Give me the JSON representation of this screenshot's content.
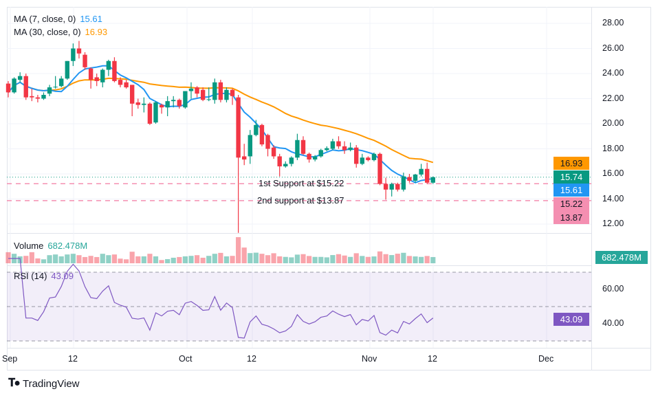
{
  "chart_data": {
    "type": "candlestick",
    "interval": "daily",
    "x_start": "Sep 1",
    "x_end": "Nov 12",
    "price_axis": {
      "ticks": [
        "28.00",
        "26.00",
        "24.00",
        "22.00",
        "20.00",
        "18.00",
        "16.00",
        "14.00",
        "12.00"
      ],
      "ylim": [
        12,
        28
      ]
    },
    "time_axis": {
      "ticks": [
        "Sep",
        "12",
        "Oct",
        "12",
        "Nov",
        "12",
        "Dec"
      ]
    },
    "ohlc": [
      [
        23.2,
        23.4,
        22.1,
        22.5
      ],
      [
        22.5,
        23.7,
        22.4,
        23.6
      ],
      [
        23.5,
        24.1,
        23.3,
        23.8
      ],
      [
        23.8,
        24.0,
        21.9,
        22.1
      ],
      [
        22.2,
        22.8,
        21.8,
        22.1
      ],
      [
        22.1,
        22.3,
        21.7,
        22.0
      ],
      [
        22.0,
        22.5,
        21.9,
        22.3
      ],
      [
        22.4,
        23.1,
        22.2,
        22.9
      ],
      [
        22.9,
        23.8,
        22.8,
        22.95
      ],
      [
        23.0,
        23.8,
        22.9,
        23.6
      ],
      [
        23.6,
        25.0,
        23.5,
        25.0
      ],
      [
        25.0,
        26.4,
        24.6,
        26.0
      ],
      [
        26.0,
        26.6,
        25.2,
        25.6
      ],
      [
        25.5,
        25.7,
        24.3,
        24.5
      ],
      [
        24.4,
        24.5,
        22.8,
        23.5
      ],
      [
        23.7,
        24.0,
        23.0,
        23.4
      ],
      [
        23.3,
        24.4,
        22.9,
        24.3
      ],
      [
        24.3,
        25.1,
        23.8,
        25.0
      ],
      [
        25.0,
        25.3,
        23.3,
        23.4
      ],
      [
        23.5,
        23.7,
        22.9,
        23.1
      ],
      [
        23.3,
        23.5,
        22.8,
        22.9
      ],
      [
        23.1,
        23.1,
        20.6,
        21.6
      ],
      [
        21.7,
        22.0,
        21.2,
        21.5
      ],
      [
        21.5,
        22.1,
        20.9,
        21.6
      ],
      [
        21.6,
        21.7,
        19.9,
        20.0
      ],
      [
        20.1,
        21.8,
        20.0,
        21.7
      ],
      [
        21.5,
        21.6,
        20.8,
        21.3
      ],
      [
        21.3,
        22.2,
        20.6,
        21.8
      ],
      [
        21.8,
        22.2,
        21.3,
        21.9
      ],
      [
        21.9,
        22.0,
        21.2,
        21.4
      ],
      [
        21.3,
        22.6,
        21.2,
        22.6
      ],
      [
        22.6,
        23.3,
        22.0,
        22.8
      ],
      [
        22.9,
        23.0,
        22.1,
        22.4
      ],
      [
        22.7,
        22.9,
        21.8,
        21.9
      ],
      [
        21.9,
        22.9,
        21.8,
        21.95
      ],
      [
        21.9,
        23.6,
        21.6,
        23.3
      ],
      [
        23.3,
        23.5,
        21.7,
        21.9
      ],
      [
        21.9,
        22.9,
        21.7,
        22.7
      ],
      [
        22.7,
        22.8,
        21.5,
        22.2
      ],
      [
        22.1,
        22.3,
        11.3,
        17.3
      ],
      [
        17.4,
        18.4,
        16.7,
        17.15
      ],
      [
        17.4,
        19.5,
        16.8,
        19.1
      ],
      [
        19.1,
        20.3,
        19.0,
        19.9
      ],
      [
        19.9,
        20.0,
        18.2,
        18.35
      ],
      [
        19.1,
        19.2,
        17.4,
        18.0
      ],
      [
        18.1,
        18.3,
        17.2,
        17.4
      ],
      [
        17.4,
        17.6,
        15.8,
        16.6
      ],
      [
        16.6,
        17.0,
        16.5,
        16.8
      ],
      [
        16.8,
        17.4,
        16.6,
        17.3
      ],
      [
        17.3,
        19.2,
        17.1,
        18.7
      ],
      [
        18.7,
        19.0,
        17.5,
        17.6
      ],
      [
        17.6,
        17.7,
        16.9,
        17.15
      ],
      [
        17.15,
        17.5,
        17.0,
        17.4
      ],
      [
        17.4,
        18.0,
        17.3,
        17.9
      ],
      [
        17.9,
        18.2,
        17.8,
        18.05
      ],
      [
        18.0,
        18.8,
        17.9,
        18.6
      ],
      [
        18.6,
        19.0,
        18.0,
        18.2
      ],
      [
        18.2,
        18.6,
        17.6,
        17.9
      ],
      [
        17.9,
        18.5,
        17.8,
        18.1
      ],
      [
        18.1,
        18.3,
        16.5,
        16.8
      ],
      [
        16.8,
        17.6,
        16.7,
        17.3
      ],
      [
        17.3,
        17.4,
        17.0,
        17.1
      ],
      [
        17.1,
        17.7,
        17.0,
        17.6
      ],
      [
        17.6,
        17.7,
        15.1,
        15.2
      ],
      [
        15.2,
        15.7,
        13.95,
        14.75
      ],
      [
        14.75,
        15.3,
        14.2,
        15.2
      ],
      [
        15.2,
        15.3,
        14.6,
        14.75
      ],
      [
        14.75,
        16.1,
        14.6,
        15.8
      ],
      [
        15.75,
        16.0,
        15.3,
        15.45
      ],
      [
        15.45,
        16.0,
        15.3,
        15.95
      ],
      [
        15.95,
        16.8,
        15.8,
        16.4
      ],
      [
        16.4,
        16.9,
        15.2,
        15.3
      ],
      [
        15.3,
        15.8,
        15.2,
        15.74
      ]
    ],
    "volume_millions": [
      1216,
      1041,
      760,
      813,
      1216,
      532,
      433,
      889,
      965,
      760,
      965,
      1041,
      889,
      684,
      813,
      684,
      1041,
      889,
      965,
      509,
      433,
      1269,
      760,
      760,
      1041,
      760,
      357,
      456,
      608,
      684,
      760,
      813,
      889,
      608,
      813,
      1041,
      1140,
      760,
      813,
      2865,
      1725,
      1117,
      1163,
      1041,
      889,
      1100,
      760,
      700,
      650,
      950,
      1000,
      800,
      700,
      700,
      650,
      900,
      1000,
      850,
      700,
      1100,
      800,
      700,
      750,
      1300,
      1000,
      900,
      1050,
      1150,
      800,
      750,
      700,
      800,
      682.478
    ],
    "indicators": {
      "ma7": {
        "label": "MA (7, close, 0)",
        "value": "15.61",
        "color": "#2196f3"
      },
      "ma30": {
        "label": "MA (30, close, 0)",
        "value": "16.93",
        "color": "#ff9800"
      },
      "volume": {
        "label": "Volume",
        "value": "682.478M",
        "color": "#26a69a"
      },
      "rsi": {
        "label": "RSI (14)",
        "value": "43.09",
        "color": "#7e57c2",
        "ticks": [
          "60.00",
          "40.00"
        ],
        "bands": [
          70,
          50,
          30
        ]
      }
    },
    "annotations": [
      {
        "text": "1st Support at $15.22",
        "price": 15.22
      },
      {
        "text": "2nd support at $13.87",
        "price": 13.87
      }
    ],
    "price_labels": {
      "ma30": "16.93",
      "last": "15.74",
      "ma7": "15.61",
      "support1": "15.22",
      "support2": "13.87"
    },
    "colors": {
      "up": "#089981",
      "down": "#f23645",
      "support": "#f48fb1",
      "last_line": "#089981"
    }
  },
  "footer": {
    "brand": "TradingView"
  }
}
